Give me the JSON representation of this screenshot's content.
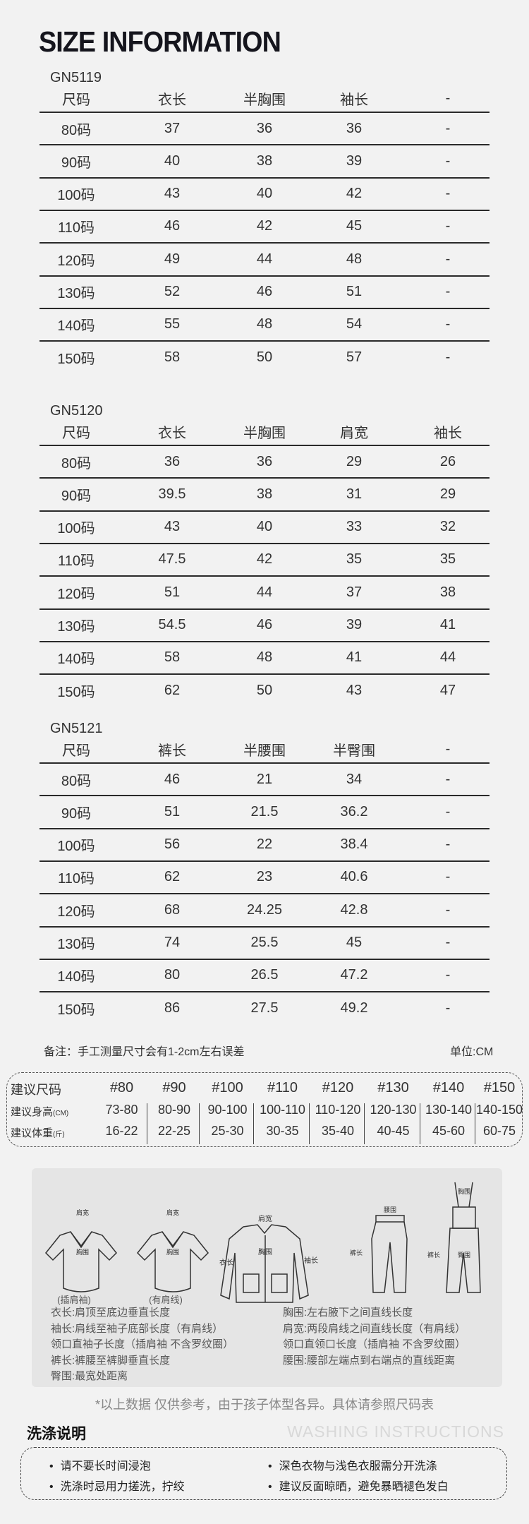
{
  "title": "SIZE INFORMATION",
  "tables": [
    {
      "code": "GN5119",
      "headers": [
        "尺码",
        "衣长",
        "半胸围",
        "袖长",
        "-"
      ],
      "rows": [
        [
          "80码",
          "37",
          "36",
          "36",
          "-"
        ],
        [
          "90码",
          "40",
          "38",
          "39",
          "-"
        ],
        [
          "100码",
          "43",
          "40",
          "42",
          "-"
        ],
        [
          "110码",
          "46",
          "42",
          "45",
          "-"
        ],
        [
          "120码",
          "49",
          "44",
          "48",
          "-"
        ],
        [
          "130码",
          "52",
          "46",
          "51",
          "-"
        ],
        [
          "140码",
          "55",
          "48",
          "54",
          "-"
        ],
        [
          "150码",
          "58",
          "50",
          "57",
          "-"
        ]
      ]
    },
    {
      "code": "GN5120",
      "headers": [
        "尺码",
        "衣长",
        "半胸围",
        "肩宽",
        "袖长"
      ],
      "rows": [
        [
          "80码",
          "36",
          "36",
          "29",
          "26"
        ],
        [
          "90码",
          "39.5",
          "38",
          "31",
          "29"
        ],
        [
          "100码",
          "43",
          "40",
          "33",
          "32"
        ],
        [
          "110码",
          "47.5",
          "42",
          "35",
          "35"
        ],
        [
          "120码",
          "51",
          "44",
          "37",
          "38"
        ],
        [
          "130码",
          "54.5",
          "46",
          "39",
          "41"
        ],
        [
          "140码",
          "58",
          "48",
          "41",
          "44"
        ],
        [
          "150码",
          "62",
          "50",
          "43",
          "47"
        ]
      ]
    },
    {
      "code": "GN5121",
      "headers": [
        "尺码",
        "裤长",
        "半腰围",
        "半臀围",
        "-"
      ],
      "rows": [
        [
          "80码",
          "46",
          "21",
          "34",
          "-"
        ],
        [
          "90码",
          "51",
          "21.5",
          "36.2",
          "-"
        ],
        [
          "100码",
          "56",
          "22",
          "38.4",
          "-"
        ],
        [
          "110码",
          "62",
          "23",
          "40.6",
          "-"
        ],
        [
          "120码",
          "68",
          "24.25",
          "42.8",
          "-"
        ],
        [
          "130码",
          "74",
          "25.5",
          "45",
          "-"
        ],
        [
          "140码",
          "80",
          "26.5",
          "47.2",
          "-"
        ],
        [
          "150码",
          "86",
          "27.5",
          "49.2",
          "-"
        ]
      ]
    }
  ],
  "note": "备注：手工测量尺寸会有1-2cm左右误差",
  "unit": "单位:CM",
  "suggest": {
    "row_labels": [
      {
        "main": "建议尺码",
        "sub": ""
      },
      {
        "main": "建议身高",
        "sub": "(CM)"
      },
      {
        "main": "建议体重",
        "sub": "(斤)"
      }
    ],
    "sizes": [
      "#80",
      "#90",
      "#100",
      "#110",
      "#120",
      "#130",
      "#140",
      "#150"
    ],
    "heights": [
      "73-80",
      "80-90",
      "90-100",
      "100-110",
      "110-120",
      "120-130",
      "130-140",
      "140-150"
    ],
    "weights": [
      "16-22",
      "22-25",
      "25-30",
      "30-35",
      "35-40",
      "40-45",
      "45-60",
      "60-75"
    ]
  },
  "diagram": {
    "labels": {
      "shoulder": "肩宽",
      "sleeve": "袖长",
      "chest": "胸围",
      "length": "衣长",
      "waist": "腰围",
      "hip": "臀围",
      "pants": "裤长"
    },
    "captions": [
      "(插肩袖)",
      "(有肩线)"
    ],
    "left": [
      "衣长:肩顶至底边垂直长度",
      "袖长:肩线至袖子底部长度（有肩线）",
      "领口直袖子长度（插肩袖 不含罗纹圈）",
      "裤长:裤腰至裤脚垂直长度",
      "臀围:最宽处距离"
    ],
    "right": [
      "胸围:左右腋下之间直线长度",
      "肩宽:两段肩线之间直线长度（有肩线）",
      "领口直领口长度（插肩袖 不含罗纹圈）",
      "腰围:腰部左端点到右端点的直线距离"
    ]
  },
  "footnote": "*以上数据 仅供参考，由于孩子体型各异。具体请参照尺码表",
  "washing": {
    "title": "洗涤说明",
    "subtitle": "WASHING INSTRUCTIONS",
    "items": [
      "请不要长时间浸泡",
      "深色衣物与浅色衣服需分开洗涤",
      "洗涤时忌用力搓洗，拧绞",
      "建议反面晾晒，避免暴晒褪色发白"
    ]
  }
}
